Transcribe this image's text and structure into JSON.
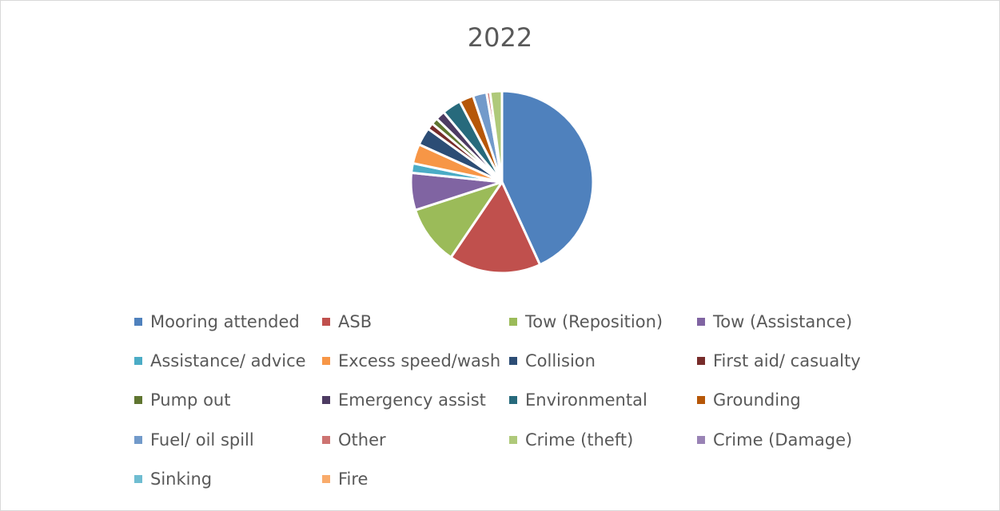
{
  "chart_data": {
    "type": "pie",
    "title": "2022",
    "legend_position": "bottom",
    "slices": [
      {
        "label": "Mooring attended",
        "value": 41.0,
        "color": "#4f81bd"
      },
      {
        "label": "ASB",
        "value": 15.5,
        "color": "#c0504d"
      },
      {
        "label": "Tow (Reposition)",
        "value": 10.0,
        "color": "#9bbb59"
      },
      {
        "label": "Tow (Assistance)",
        "value": 6.3,
        "color": "#8064a2"
      },
      {
        "label": "Assistance/ advice",
        "value": 1.6,
        "color": "#4bacc6"
      },
      {
        "label": "Excess speed/wash",
        "value": 3.3,
        "color": "#f79646"
      },
      {
        "label": "Collision",
        "value": 3.0,
        "color": "#2c4d75"
      },
      {
        "label": "First aid/ casualty",
        "value": 1.1,
        "color": "#772c2a"
      },
      {
        "label": "Pump out",
        "value": 1.1,
        "color": "#5f7530"
      },
      {
        "label": "Emergency assist",
        "value": 1.6,
        "color": "#4d3b62"
      },
      {
        "label": "Environmental",
        "value": 3.2,
        "color": "#276a7c"
      },
      {
        "label": "Grounding",
        "value": 2.4,
        "color": "#b65708"
      },
      {
        "label": "Fuel/ oil spill",
        "value": 2.3,
        "color": "#729aca"
      },
      {
        "label": "Other",
        "value": 0.6,
        "color": "#cd7371"
      },
      {
        "label": "Crime (theft)",
        "value": 2.0,
        "color": "#afc97a"
      },
      {
        "label": "Crime (Damage)",
        "value": 0.0,
        "color": "#9983b5"
      },
      {
        "label": "Sinking",
        "value": 0.0,
        "color": "#6fbdd1"
      },
      {
        "label": "Fire",
        "value": 0.0,
        "color": "#f9ab6b"
      }
    ]
  }
}
